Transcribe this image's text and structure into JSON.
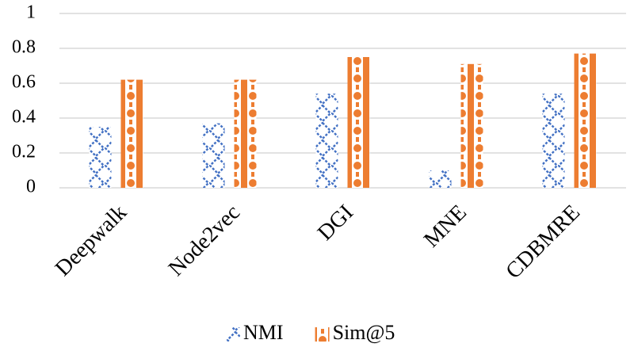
{
  "chart_data": {
    "type": "bar",
    "categories": [
      "Deepwalk",
      "Node2vec",
      "DGI",
      "MNE",
      "CDBMRE"
    ],
    "series": [
      {
        "name": "NMI",
        "color": "#4472c4",
        "values": [
          0.35,
          0.37,
          0.54,
          0.1,
          0.54
        ]
      },
      {
        "name": "Sim@5",
        "color": "#ed7d31",
        "values": [
          0.62,
          0.62,
          0.75,
          0.71,
          0.77
        ]
      }
    ],
    "ylim": [
      0,
      1
    ],
    "yticks": [
      0,
      0.2,
      0.4,
      0.6,
      0.8,
      1
    ],
    "grid": true,
    "legend": "bottom"
  }
}
